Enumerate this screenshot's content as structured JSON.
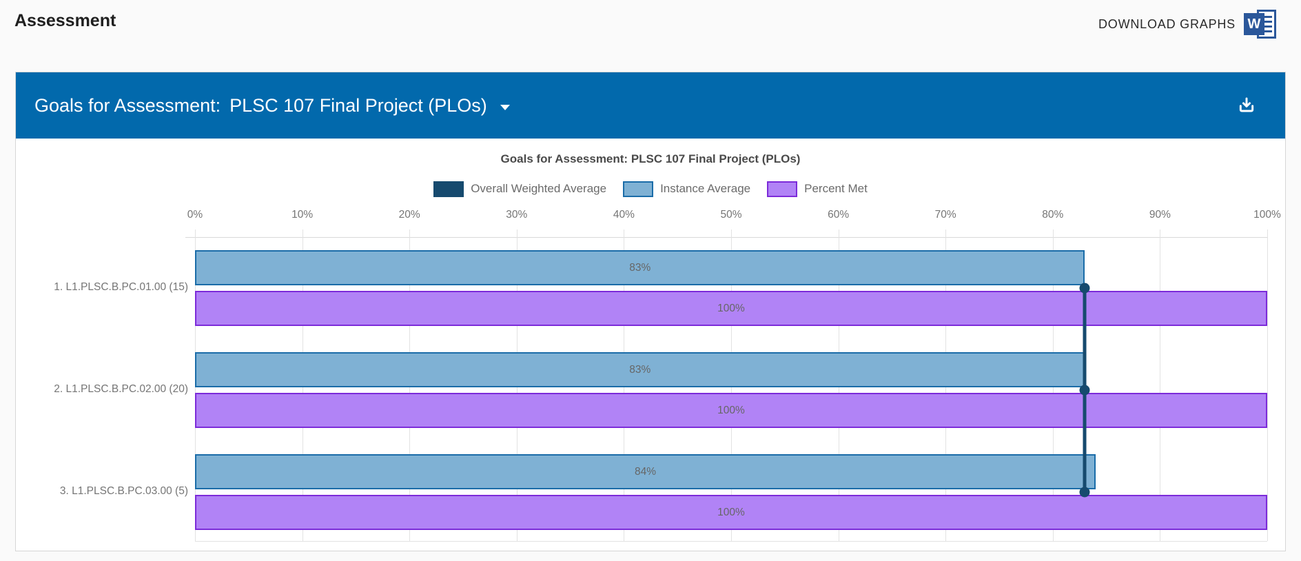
{
  "page": {
    "title": "Assessment",
    "download_graphs_label": "DOWNLOAD GRAPHS",
    "background": "#fafafa"
  },
  "panel": {
    "header_label": "Goals for Assessment:",
    "selected_assessment": "PLSC 107 Final Project (PLOs)",
    "header_color": "#0269ac"
  },
  "chart_data": {
    "type": "bar",
    "orientation": "horizontal",
    "title": "Goals for Assessment: PLSC 107 Final Project (PLOs)",
    "categories": [
      "1. L1.PLSC.B.PC.01.00 (15)",
      "2. L1.PLSC.B.PC.02.00 (20)",
      "3. L1.PLSC.B.PC.03.00 (5)"
    ],
    "series": [
      {
        "name": "Overall Weighted Average",
        "type": "line",
        "values": [
          83,
          83,
          83
        ],
        "color": "#164a6e"
      },
      {
        "name": "Instance Average",
        "type": "bar",
        "values": [
          83,
          83,
          84
        ],
        "labels": [
          "83%",
          "83%",
          "84%"
        ],
        "fill": "#7fb1d4",
        "border": "#1a6ca8"
      },
      {
        "name": "Percent Met",
        "type": "bar",
        "values": [
          100,
          100,
          100
        ],
        "labels": [
          "100%",
          "100%",
          "100%"
        ],
        "fill": "#b183f6",
        "border": "#7c2bd9"
      }
    ],
    "x_ticks": [
      "0%",
      "10%",
      "20%",
      "30%",
      "40%",
      "50%",
      "60%",
      "70%",
      "80%",
      "90%",
      "100%"
    ],
    "xlim": [
      0,
      100
    ],
    "grid": "vertical",
    "legend_position": "top"
  }
}
